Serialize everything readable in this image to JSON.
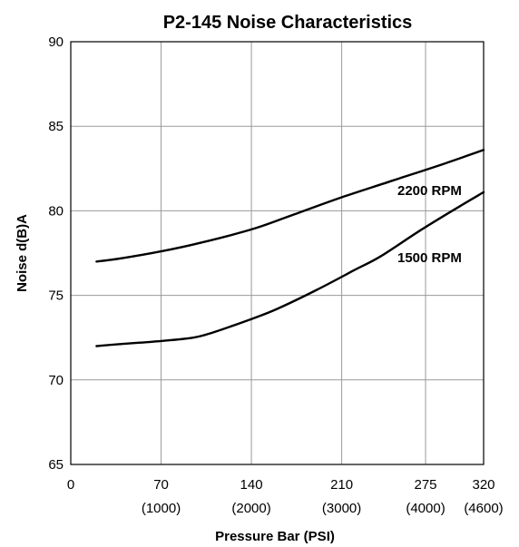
{
  "chart_data": {
    "type": "line",
    "title": "P2-145 Noise Characteristics",
    "xlabel": "Pressure Bar (PSI)",
    "ylabel": "Noise d(B)A",
    "xlim": [
      0,
      320
    ],
    "ylim": [
      65,
      90
    ],
    "x_ticks": [
      {
        "value": 0,
        "label": "0",
        "sublabel": ""
      },
      {
        "value": 70,
        "label": "70",
        "sublabel": "(1000)"
      },
      {
        "value": 140,
        "label": "140",
        "sublabel": "(2000)"
      },
      {
        "value": 210,
        "label": "210",
        "sublabel": "(3000)"
      },
      {
        "value": 275,
        "label": "275",
        "sublabel": "(4000)"
      },
      {
        "value": 320,
        "label": "320",
        "sublabel": "(4600)"
      }
    ],
    "y_ticks": [
      65,
      70,
      75,
      80,
      85,
      90
    ],
    "grid": true,
    "series": [
      {
        "name": "2200 RPM",
        "x": [
          20,
          40,
          70,
          100,
          140,
          170,
          210,
          250,
          290,
          320
        ],
        "y": [
          77.0,
          77.2,
          77.6,
          78.1,
          78.9,
          79.7,
          80.8,
          81.8,
          82.8,
          83.6
        ]
      },
      {
        "name": "1500 RPM",
        "x": [
          20,
          35,
          70,
          95,
          110,
          140,
          160,
          190,
          220,
          240,
          270,
          300,
          320
        ],
        "y": [
          72.0,
          72.1,
          72.3,
          72.5,
          72.8,
          73.6,
          74.2,
          75.3,
          76.5,
          77.3,
          78.8,
          80.2,
          81.1
        ]
      }
    ]
  }
}
